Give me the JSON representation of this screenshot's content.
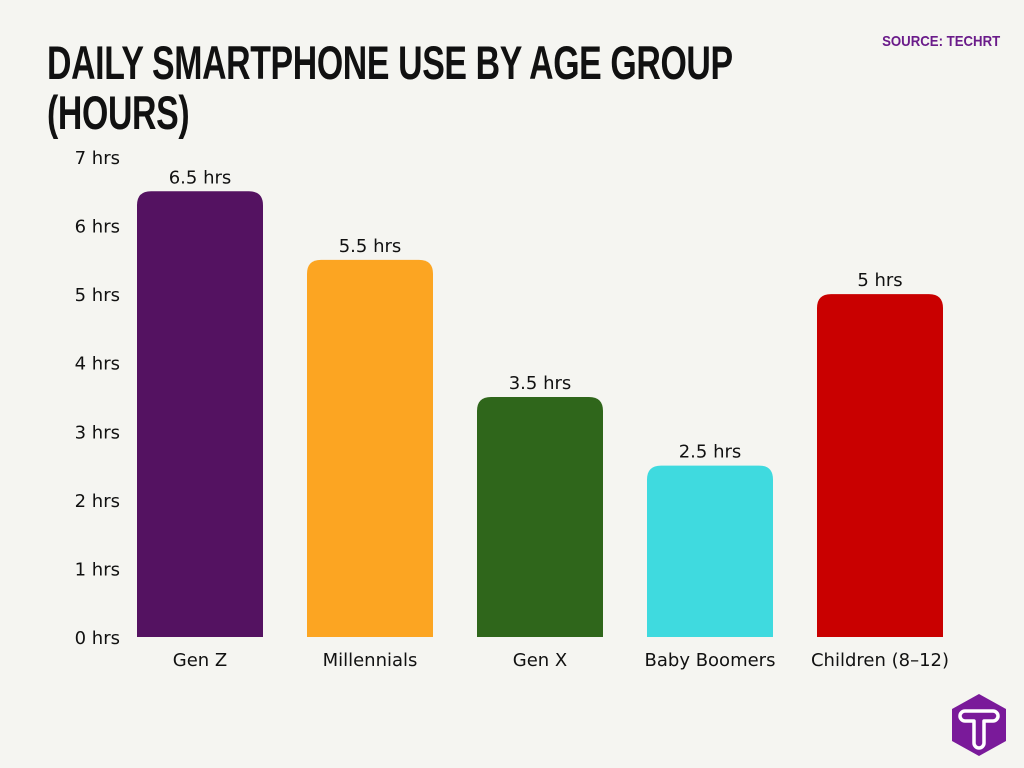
{
  "source": "SOURCE: TECHRT",
  "logo_text": "T",
  "chart_data": {
    "type": "bar",
    "title": "DAILY SMARTPHONE USE BY AGE GROUP (HOURS)",
    "title_lines": [
      "DAILY SMARTPHONE USE BY AGE GROUP",
      "(HOURS)"
    ],
    "xlabel": "",
    "ylabel": "",
    "categories": [
      "Gen Z",
      "Millennials",
      "Gen X",
      "Baby Boomers",
      "Children (8–12)"
    ],
    "values": [
      6.5,
      5.5,
      3.5,
      2.5,
      5
    ],
    "data_labels": [
      "6.5 hrs",
      "5.5 hrs",
      "3.5 hrs",
      "2.5 hrs",
      "5 hrs"
    ],
    "colors": [
      "#541261",
      "#fca522",
      "#2f661b",
      "#3fdadf",
      "#c90000"
    ],
    "ylim": [
      0,
      7
    ],
    "yticks": [
      0,
      1,
      2,
      3,
      4,
      5,
      6,
      7
    ],
    "ytick_labels": [
      "0 hrs",
      "1 hrs",
      "2 hrs",
      "3 hrs",
      "4 hrs",
      "5 hrs",
      "6 hrs",
      "7 hrs"
    ],
    "grid": false,
    "legend": "none"
  }
}
